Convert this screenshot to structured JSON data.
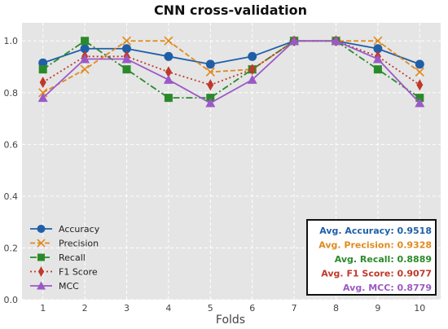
{
  "chart_data": {
    "type": "line",
    "title": "CNN cross-validation",
    "xlabel": "Folds",
    "ylabel": "",
    "x": [
      1,
      2,
      3,
      4,
      5,
      6,
      7,
      8,
      9,
      10
    ],
    "xlim": [
      0.5,
      10.5
    ],
    "ylim": [
      0.0,
      1.07
    ],
    "yticks": [
      0.0,
      0.2,
      0.4,
      0.6,
      0.8,
      1.0
    ],
    "ytick_labels": [
      "0.0",
      "0.2",
      "0.4",
      "0.6",
      "0.8",
      "1.0"
    ],
    "grid": true,
    "background": "#e5e5e5",
    "legend_position": "lower-left",
    "series": [
      {
        "name": "Accuracy",
        "color": "#1f5fa8",
        "linestyle": "solid",
        "marker": "circle",
        "values": [
          0.915,
          0.97,
          0.97,
          0.94,
          0.91,
          0.94,
          1.0,
          1.0,
          0.97,
          0.91
        ]
      },
      {
        "name": "Precision",
        "color": "#e08a1e",
        "linestyle": "dashed",
        "marker": "x",
        "values": [
          0.8,
          0.89,
          1.0,
          1.0,
          0.88,
          0.89,
          1.0,
          1.0,
          1.0,
          0.88
        ]
      },
      {
        "name": "Recall",
        "color": "#2a8a2a",
        "linestyle": "dashdot",
        "marker": "square",
        "values": [
          0.89,
          1.0,
          0.89,
          0.78,
          0.78,
          0.89,
          1.0,
          1.0,
          0.89,
          0.78
        ]
      },
      {
        "name": "F1 Score",
        "color": "#c0392b",
        "linestyle": "dotted",
        "marker": "diamond",
        "values": [
          0.84,
          0.94,
          0.94,
          0.88,
          0.83,
          0.89,
          1.0,
          1.0,
          0.94,
          0.83
        ]
      },
      {
        "name": "MCC",
        "color": "#9b59c6",
        "linestyle": "solid",
        "marker": "triangle",
        "values": [
          0.78,
          0.93,
          0.93,
          0.85,
          0.76,
          0.85,
          1.0,
          1.0,
          0.93,
          0.76
        ]
      }
    ],
    "averages_box": [
      {
        "text": "Avg. Accuracy: 0.9518",
        "color": "#1f5fa8"
      },
      {
        "text": "Avg. Precision: 0.9328",
        "color": "#e08a1e"
      },
      {
        "text": "Avg. Recall: 0.8889",
        "color": "#2a8a2a"
      },
      {
        "text": "Avg. F1 Score: 0.9077",
        "color": "#c0392b"
      },
      {
        "text": "Avg. MCC: 0.8779",
        "color": "#9b59c6"
      }
    ]
  }
}
